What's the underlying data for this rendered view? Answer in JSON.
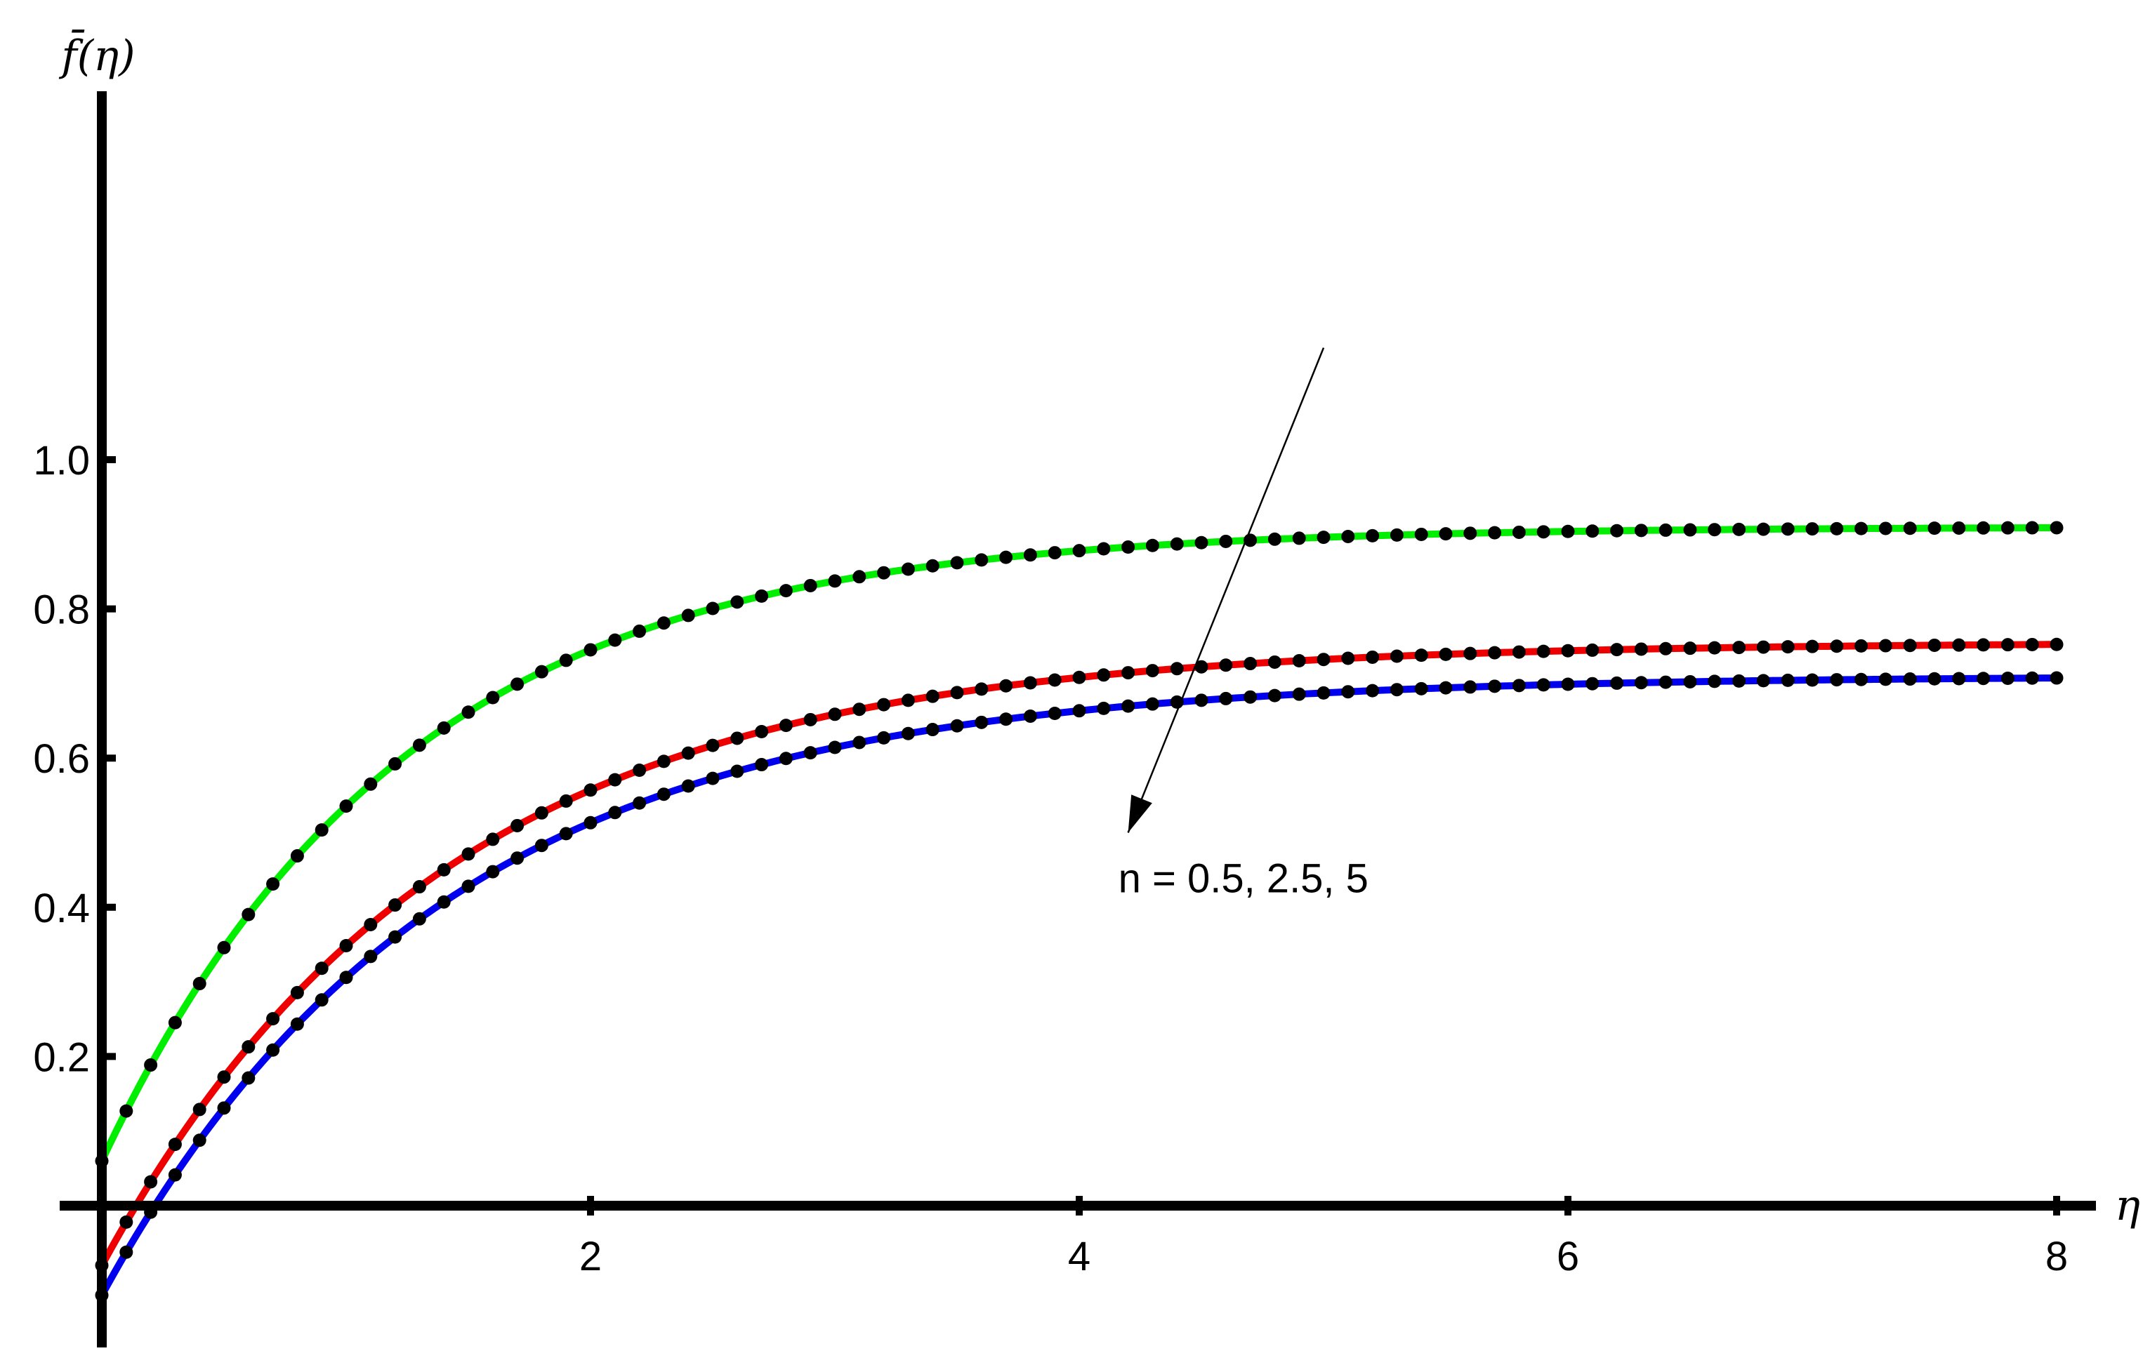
{
  "chart_data": {
    "type": "line",
    "title": "",
    "xlabel": "η",
    "ylabel": "f̄(η)",
    "xlim": [
      -0.15,
      8.2
    ],
    "ylim": [
      -0.155,
      1.18
    ],
    "xticks": [
      2,
      4,
      6,
      8
    ],
    "xtick_labels": [
      "2",
      "4",
      "6",
      "8"
    ],
    "yticks": [
      0.2,
      0.4,
      0.6,
      0.8,
      1.0
    ],
    "ytick_labels": [
      "0.2",
      "0.4",
      "0.6",
      "0.8",
      "1.0"
    ],
    "grid": false,
    "legend": "none",
    "annotation": {
      "text": "n = 0.5, 2.5, 5",
      "arrow_from": [
        5.0,
        1.15
      ],
      "arrow_to": [
        4.2,
        0.5
      ]
    },
    "series": [
      {
        "color": "#00ee00",
        "f0": 0.06,
        "finf": 0.91,
        "k": 0.82
      },
      {
        "color": "#ee0000",
        "f0": -0.08,
        "finf": 0.755,
        "k": 0.72
      },
      {
        "color": "#0000ee",
        "f0": -0.12,
        "finf": 0.71,
        "k": 0.72
      }
    ],
    "marker_color": "#000000",
    "marker_count": 80
  }
}
